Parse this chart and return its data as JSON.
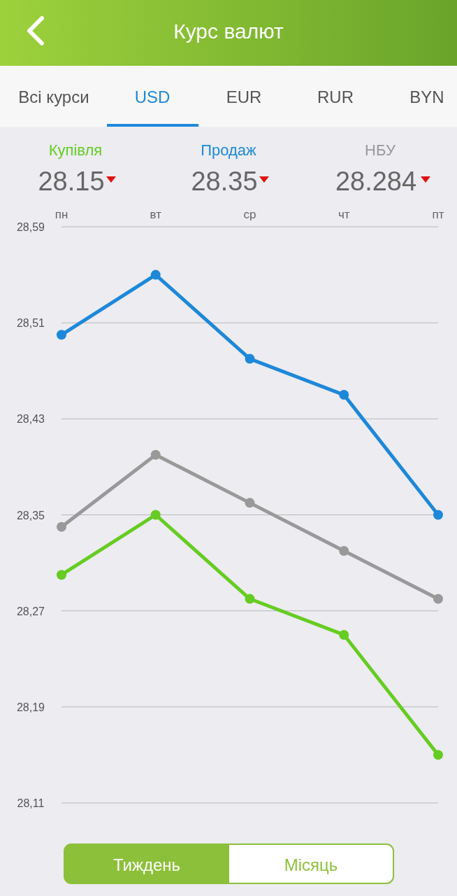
{
  "chart_data": {
    "type": "line",
    "title": "Курс валют",
    "categories": [
      "пн",
      "вт",
      "ср",
      "чт",
      "пт"
    ],
    "series": [
      {
        "name": "Купівля",
        "color": "#66cc22",
        "values": [
          28.3,
          28.35,
          28.28,
          28.25,
          28.15
        ]
      },
      {
        "name": "Продаж",
        "color": "#1e88d8",
        "values": [
          28.5,
          28.55,
          28.48,
          28.45,
          28.35
        ]
      },
      {
        "name": "НБУ",
        "color": "#999999",
        "values": [
          28.34,
          28.4,
          28.36,
          28.32,
          28.28
        ]
      }
    ],
    "ylim": [
      28.11,
      28.59
    ],
    "yticks": [
      {
        "value": 28.11,
        "label": "28,11"
      },
      {
        "value": 28.19,
        "label": "28,19"
      },
      {
        "value": 28.27,
        "label": "28,27"
      },
      {
        "value": 28.35,
        "label": "28,35"
      },
      {
        "value": 28.43,
        "label": "28,43"
      },
      {
        "value": 28.51,
        "label": "28,51"
      },
      {
        "value": 28.59,
        "label": "28,59"
      }
    ],
    "grid": "y",
    "marker": "circle",
    "line_style": "solid",
    "legend": "top",
    "annotations": [
      "Всі курси",
      "USD",
      "EUR",
      "RUR",
      "BYN",
      "28.15",
      "28.35",
      "28.284",
      "Тиждень",
      "Місяць"
    ]
  }
}
